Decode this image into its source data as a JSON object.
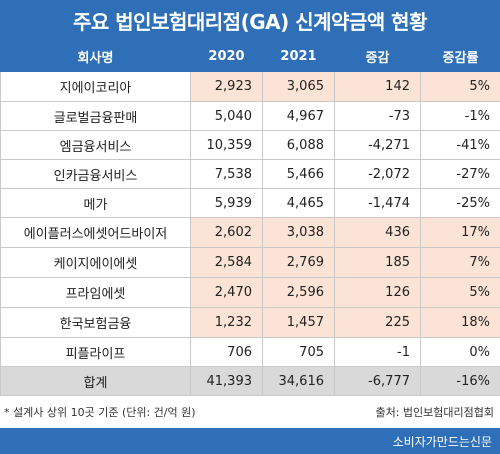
{
  "title": "주요 법인보험대리점(GA) 신계약금액 현황",
  "headers": [
    "회사명",
    "2020",
    "2021",
    "증감",
    "증감률"
  ],
  "rows": [
    {
      "name": "지에이코리아",
      "v2020": "2,923",
      "v2021": "3,065",
      "diff": "142",
      "rate": "5%"
    },
    {
      "name": "글로벌금융판매",
      "v2020": "5,040",
      "v2021": "4,967",
      "diff": "-73",
      "rate": "-1%"
    },
    {
      "name": "엠금융서비스",
      "v2020": "10,359",
      "v2021": "6,088",
      "diff": "-4,271",
      "rate": "-41%"
    },
    {
      "name": "인카금융서비스",
      "v2020": "7,538",
      "v2021": "5,466",
      "diff": "-2,072",
      "rate": "-27%"
    },
    {
      "name": "메가",
      "v2020": "5,939",
      "v2021": "4,465",
      "diff": "-1,474",
      "rate": "-25%"
    },
    {
      "name": "에이플러스에셋어드바이저",
      "v2020": "2,602",
      "v2021": "3,038",
      "diff": "436",
      "rate": "17%"
    },
    {
      "name": "케이지에이에셋",
      "v2020": "2,584",
      "v2021": "2,769",
      "diff": "185",
      "rate": "7%"
    },
    {
      "name": "프라임에셋",
      "v2020": "2,470",
      "v2021": "2,596",
      "diff": "126",
      "rate": "5%"
    },
    {
      "name": "한국보험금융",
      "v2020": "1,232",
      "v2021": "1,457",
      "diff": "225",
      "rate": "18%"
    },
    {
      "name": "피플라이프",
      "v2020": "706",
      "v2021": "705",
      "diff": "-1",
      "rate": "0%"
    }
  ],
  "total": {
    "name": "합계",
    "v2020": "41,393",
    "v2021": "34,616",
    "diff": "-6,777",
    "rate": "-16%"
  },
  "note": "* 설계사 상위 10곳 기준 (단위: 건/억 원)",
  "source": "출처: 법인보험대리점협회",
  "brand": "소비자가만드는신문",
  "colors": {
    "header_blue": "#2e6fb8",
    "highlight": "#fbe4d5",
    "total_gray": "#d9d9d9"
  }
}
